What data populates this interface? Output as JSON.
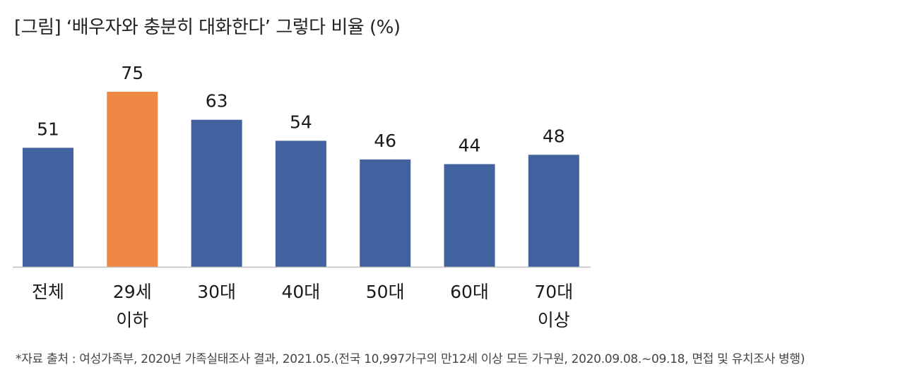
{
  "title": "[그림] ‘배우자와 충분히 대화한다’ 그렇다 비율 (%)",
  "footnote": "*자료 출처 : 여성가족부, 2020년 가족실태조사 결과, 2021.05.(전국 10,997가구의 만12세 이상 모든 가구원, 2020.09.08.~09.18, 면접 및 유치조사 병행)",
  "colors": {
    "default_bar": "#41629f",
    "highlight_bar": "#f08845",
    "axis": "#bfbfbf"
  },
  "chart_data": {
    "type": "bar",
    "categories": [
      "전체",
      "29세\n이하",
      "30대",
      "40대",
      "50대",
      "60대",
      "70대\n이상"
    ],
    "values": [
      51,
      75,
      63,
      54,
      46,
      44,
      48
    ],
    "highlight_index": 1,
    "title": "[그림] ‘배우자와 충분히 대화한다’ 그렇다 비율 (%)",
    "xlabel": "",
    "ylabel": "",
    "ylim": [
      0,
      75
    ],
    "grid": false,
    "legend": "none"
  }
}
